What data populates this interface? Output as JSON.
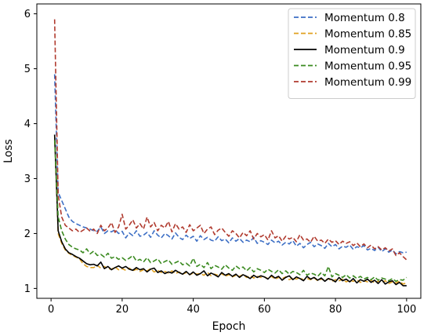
{
  "chart_data": {
    "type": "line",
    "title": "",
    "xlabel": "Epoch",
    "ylabel": "Loss",
    "xlim": [
      -4,
      104
    ],
    "ylim": [
      0.82,
      6.18
    ],
    "xticks": [
      0,
      20,
      40,
      60,
      80,
      100
    ],
    "yticks": [
      1,
      2,
      3,
      4,
      5,
      6
    ],
    "grid": false,
    "legend_position": "top-right",
    "x": [
      1,
      2,
      3,
      4,
      5,
      6,
      7,
      8,
      9,
      10,
      11,
      12,
      13,
      14,
      15,
      16,
      17,
      18,
      19,
      20,
      21,
      22,
      23,
      24,
      25,
      26,
      27,
      28,
      29,
      30,
      31,
      32,
      33,
      34,
      35,
      36,
      37,
      38,
      39,
      40,
      41,
      42,
      43,
      44,
      45,
      46,
      47,
      48,
      49,
      50,
      51,
      52,
      53,
      54,
      55,
      56,
      57,
      58,
      59,
      60,
      61,
      62,
      63,
      64,
      65,
      66,
      67,
      68,
      69,
      70,
      71,
      72,
      73,
      74,
      75,
      76,
      77,
      78,
      79,
      80,
      81,
      82,
      83,
      84,
      85,
      86,
      87,
      88,
      89,
      90,
      91,
      92,
      93,
      94,
      95,
      96,
      97,
      98,
      99,
      100
    ],
    "series": [
      {
        "name": "Momentum 0.8",
        "color": "#3d6fc5",
        "dash": "dashed",
        "values": [
          4.9,
          2.75,
          2.6,
          2.45,
          2.3,
          2.22,
          2.18,
          2.15,
          2.12,
          2.1,
          2.08,
          2.05,
          2.04,
          2.12,
          2.0,
          2.05,
          2.03,
          2.07,
          2.0,
          2.04,
          1.92,
          2.01,
          1.96,
          2.05,
          1.95,
          1.97,
          2.02,
          1.93,
          2.05,
          1.97,
          1.92,
          2.0,
          1.96,
          1.9,
          2.01,
          1.93,
          1.89,
          1.97,
          1.91,
          1.95,
          1.86,
          1.96,
          1.89,
          1.93,
          1.88,
          1.86,
          1.94,
          1.87,
          1.9,
          1.83,
          1.92,
          1.86,
          1.91,
          1.84,
          1.88,
          1.85,
          1.93,
          1.82,
          1.87,
          1.84,
          1.8,
          1.88,
          1.83,
          1.86,
          1.79,
          1.84,
          1.81,
          1.87,
          1.77,
          1.82,
          1.74,
          1.8,
          1.84,
          1.76,
          1.81,
          1.78,
          1.73,
          1.82,
          1.76,
          1.8,
          1.72,
          1.77,
          1.75,
          1.79,
          1.71,
          1.76,
          1.74,
          1.78,
          1.7,
          1.73,
          1.69,
          1.75,
          1.67,
          1.72,
          1.66,
          1.7,
          1.63,
          1.67,
          1.65,
          1.66
        ]
      },
      {
        "name": "Momentum 0.85",
        "color": "#e0a020",
        "dash": "dashed",
        "values": [
          3.8,
          2.0,
          1.82,
          1.7,
          1.64,
          1.6,
          1.57,
          1.54,
          1.45,
          1.4,
          1.38,
          1.38,
          1.42,
          1.37,
          1.4,
          1.36,
          1.35,
          1.39,
          1.34,
          1.36,
          1.33,
          1.37,
          1.32,
          1.35,
          1.31,
          1.34,
          1.32,
          1.36,
          1.3,
          1.33,
          1.29,
          1.31,
          1.28,
          1.32,
          1.27,
          1.3,
          1.26,
          1.29,
          1.25,
          1.28,
          1.26,
          1.27,
          1.24,
          1.29,
          1.23,
          1.26,
          1.24,
          1.27,
          1.22,
          1.25,
          1.21,
          1.24,
          1.22,
          1.25,
          1.2,
          1.23,
          1.19,
          1.22,
          1.2,
          1.21,
          1.18,
          1.22,
          1.17,
          1.2,
          1.18,
          1.21,
          1.16,
          1.19,
          1.17,
          1.2,
          1.15,
          1.18,
          1.16,
          1.19,
          1.14,
          1.17,
          1.15,
          1.18,
          1.13,
          1.16,
          1.14,
          1.17,
          1.12,
          1.15,
          1.13,
          1.16,
          1.11,
          1.14,
          1.12,
          1.15,
          1.1,
          1.13,
          1.11,
          1.14,
          1.09,
          1.12,
          1.1,
          1.13,
          1.08,
          1.1
        ]
      },
      {
        "name": "Momentum 0.9",
        "color": "#000000",
        "dash": "solid",
        "values": [
          3.8,
          2.05,
          1.85,
          1.72,
          1.65,
          1.62,
          1.58,
          1.55,
          1.5,
          1.45,
          1.43,
          1.44,
          1.41,
          1.48,
          1.36,
          1.4,
          1.34,
          1.38,
          1.41,
          1.37,
          1.4,
          1.35,
          1.33,
          1.38,
          1.34,
          1.36,
          1.3,
          1.35,
          1.37,
          1.29,
          1.32,
          1.27,
          1.3,
          1.28,
          1.33,
          1.29,
          1.26,
          1.31,
          1.25,
          1.3,
          1.24,
          1.27,
          1.32,
          1.23,
          1.28,
          1.25,
          1.21,
          1.29,
          1.24,
          1.27,
          1.22,
          1.26,
          1.2,
          1.25,
          1.22,
          1.18,
          1.24,
          1.2,
          1.23,
          1.21,
          1.17,
          1.24,
          1.19,
          1.22,
          1.15,
          1.2,
          1.23,
          1.16,
          1.21,
          1.18,
          1.14,
          1.22,
          1.17,
          1.2,
          1.15,
          1.19,
          1.13,
          1.18,
          1.16,
          1.12,
          1.2,
          1.14,
          1.17,
          1.12,
          1.18,
          1.1,
          1.16,
          1.13,
          1.17,
          1.11,
          1.15,
          1.09,
          1.16,
          1.08,
          1.12,
          1.14,
          1.07,
          1.11,
          1.05,
          1.05
        ]
      },
      {
        "name": "Momentum 0.95",
        "color": "#3a8a1f",
        "dash": "dashed",
        "values": [
          3.7,
          2.3,
          2.05,
          1.9,
          1.8,
          1.75,
          1.72,
          1.7,
          1.65,
          1.72,
          1.63,
          1.68,
          1.6,
          1.62,
          1.57,
          1.64,
          1.55,
          1.58,
          1.53,
          1.56,
          1.51,
          1.55,
          1.6,
          1.5,
          1.53,
          1.48,
          1.56,
          1.47,
          1.5,
          1.54,
          1.45,
          1.49,
          1.52,
          1.44,
          1.47,
          1.5,
          1.43,
          1.46,
          1.41,
          1.55,
          1.4,
          1.44,
          1.38,
          1.47,
          1.36,
          1.42,
          1.39,
          1.35,
          1.43,
          1.37,
          1.33,
          1.41,
          1.36,
          1.39,
          1.32,
          1.38,
          1.3,
          1.36,
          1.33,
          1.29,
          1.35,
          1.31,
          1.28,
          1.34,
          1.27,
          1.32,
          1.26,
          1.31,
          1.29,
          1.25,
          1.33,
          1.24,
          1.28,
          1.26,
          1.22,
          1.29,
          1.23,
          1.4,
          1.21,
          1.27,
          1.24,
          1.2,
          1.25,
          1.19,
          1.23,
          1.18,
          1.22,
          1.17,
          1.2,
          1.16,
          1.21,
          1.15,
          1.19,
          1.17,
          1.14,
          1.18,
          1.13,
          1.16,
          1.15,
          1.2
        ]
      },
      {
        "name": "Momentum 0.99",
        "color": "#b03a2e",
        "dash": "dashed",
        "values": [
          5.9,
          2.7,
          2.3,
          2.15,
          2.1,
          2.05,
          2.08,
          2.02,
          2.06,
          2.1,
          2.04,
          2.08,
          2.0,
          2.15,
          2.05,
          2.1,
          2.2,
          2.02,
          2.12,
          2.35,
          2.08,
          2.15,
          2.25,
          2.1,
          2.18,
          2.08,
          2.3,
          2.12,
          2.2,
          2.05,
          2.15,
          2.1,
          2.22,
          2.03,
          2.18,
          2.08,
          2.12,
          2.02,
          2.16,
          2.05,
          2.1,
          2.15,
          2.0,
          2.08,
          2.12,
          1.98,
          2.06,
          2.1,
          2.02,
          1.95,
          2.05,
          2.0,
          1.92,
          2.02,
          1.96,
          2.05,
          1.9,
          2.0,
          1.94,
          1.98,
          1.88,
          2.05,
          1.92,
          1.96,
          1.86,
          1.95,
          1.9,
          1.93,
          1.85,
          1.98,
          1.88,
          1.9,
          1.84,
          1.95,
          1.86,
          1.88,
          1.82,
          1.9,
          1.84,
          1.87,
          1.8,
          1.86,
          1.82,
          1.85,
          1.78,
          1.83,
          1.76,
          1.81,
          1.74,
          1.79,
          1.72,
          1.76,
          1.7,
          1.74,
          1.68,
          1.72,
          1.6,
          1.65,
          1.58,
          1.52
        ]
      }
    ]
  }
}
